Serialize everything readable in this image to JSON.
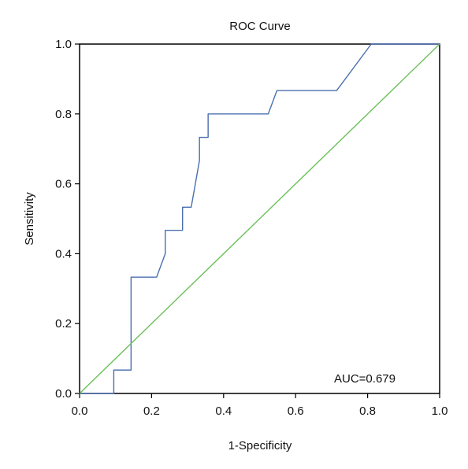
{
  "chart_data": {
    "type": "line",
    "title": "ROC Curve",
    "xlabel": "1-Specificity",
    "ylabel": "Sensitivity",
    "xlim": [
      0,
      1
    ],
    "ylim": [
      0,
      1
    ],
    "x_ticks": [
      "0.0",
      "0.2",
      "0.4",
      "0.6",
      "0.8",
      "1.0"
    ],
    "y_ticks": [
      "0.0",
      "0.2",
      "0.4",
      "0.6",
      "0.8",
      "1.0"
    ],
    "grid": false,
    "annotation": "AUC=0.679",
    "series": [
      {
        "color": "#4a6fb0",
        "x": [
          0,
          0.095,
          0.095,
          0.143,
          0.143,
          0.214,
          0.238,
          0.238,
          0.286,
          0.286,
          0.31,
          0.333,
          0.333,
          0.357,
          0.357,
          0.524,
          0.548,
          0.714,
          0.81,
          1.0
        ],
        "y": [
          0,
          0,
          0.067,
          0.067,
          0.333,
          0.333,
          0.4,
          0.467,
          0.467,
          0.533,
          0.533,
          0.667,
          0.733,
          0.733,
          0.8,
          0.8,
          0.867,
          0.867,
          1.0,
          1.0
        ]
      },
      {
        "color": "#6cc05a",
        "x": [
          0,
          1
        ],
        "y": [
          0,
          1
        ]
      }
    ]
  }
}
